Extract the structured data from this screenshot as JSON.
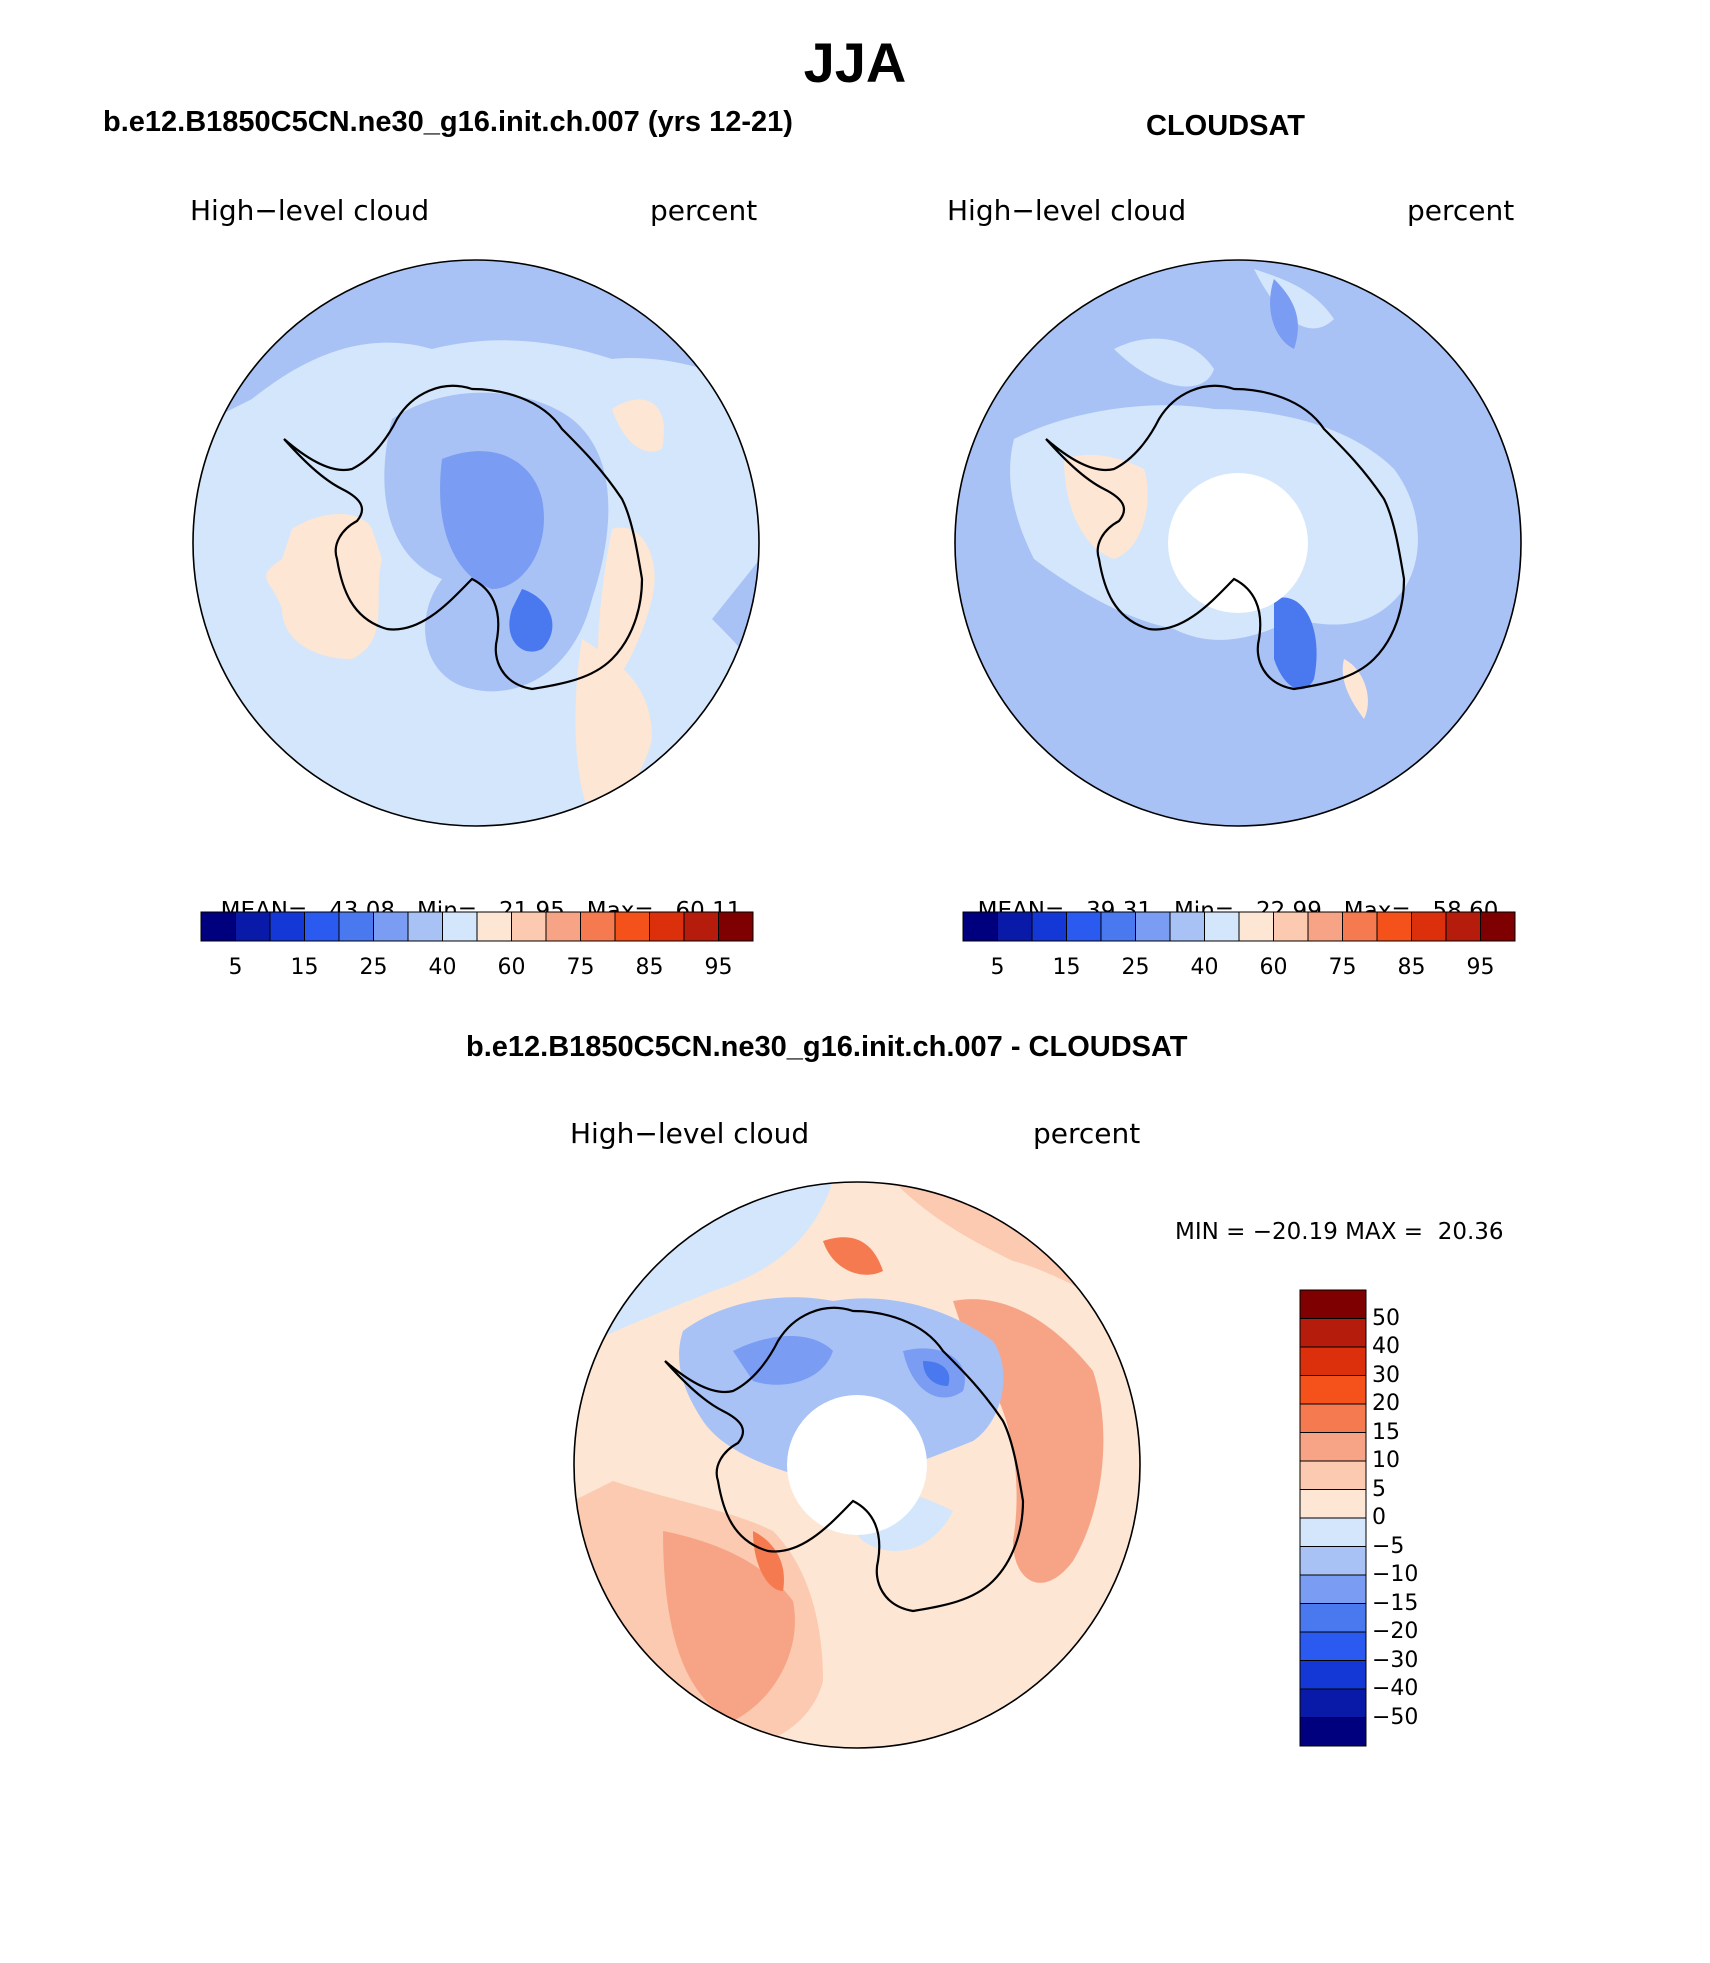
{
  "main_title": "JJA",
  "colors": {
    "abs_scale": [
      "#00007f",
      "#0a1aa8",
      "#1438d6",
      "#2a5af0",
      "#4a78ee",
      "#7a9cf2",
      "#a8c2f6",
      "#d4e6fb",
      "#fde6d4",
      "#fbcab0",
      "#f7a486",
      "#f67a50",
      "#f4521a",
      "#dc300c",
      "#b51c0c",
      "#7f0000"
    ],
    "diff_scale": [
      "#00007f",
      "#0a1aa8",
      "#1438d6",
      "#2a5af0",
      "#4a78ee",
      "#7a9cf2",
      "#a8c2f6",
      "#d4e6fb",
      "#fde6d4",
      "#fbcab0",
      "#f7a486",
      "#f67a50",
      "#f4521a",
      "#dc300c",
      "#b51c0c",
      "#7f0000"
    ],
    "coast": "#000000"
  },
  "panels": {
    "model": {
      "title": "b.e12.B1850C5CN.ne30_g16.init.ch.007 (yrs 12-21)",
      "variable": "High−level cloud",
      "units": "percent",
      "mean_label": "MEAN=",
      "mean": "43.08",
      "min_label": "Min=",
      "min": "21.95",
      "max_label": "Max=",
      "max": "60.11",
      "ticks": [
        "5",
        "15",
        "25",
        "40",
        "60",
        "75",
        "85",
        "95"
      ]
    },
    "obs": {
      "title": "CLOUDSAT",
      "variable": "High−level cloud",
      "units": "percent",
      "mean_label": "MEAN=",
      "mean": "39.31",
      "min_label": "Min=",
      "min": "22.99",
      "max_label": "Max=",
      "max": "58.60",
      "ticks": [
        "5",
        "15",
        "25",
        "40",
        "60",
        "75",
        "85",
        "95"
      ]
    },
    "diff": {
      "title": "b.e12.B1850C5CN.ne30_g16.init.ch.007 - CLOUDSAT",
      "variable": "High−level cloud",
      "units": "percent",
      "minmax_text": "MIN = −20.19 MAX =  20.36",
      "ticks": [
        "50",
        "40",
        "30",
        "20",
        "15",
        "10",
        "5",
        "0",
        "−5",
        "−10",
        "−15",
        "−20",
        "−30",
        "−40",
        "−50"
      ]
    }
  }
}
